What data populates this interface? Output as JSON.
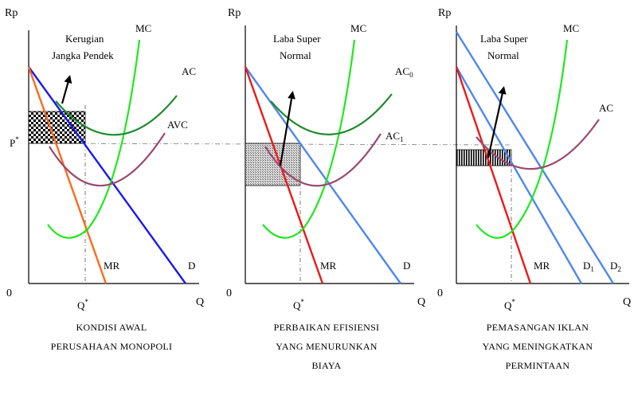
{
  "colors": {
    "mc": "#1ee81e",
    "ac": "#1f8a2e",
    "avc": "#9b4a6e",
    "mr_orange": "#ff6a1a",
    "d_blue": "#1a1aee",
    "mr_red": "#ee1818",
    "d_light": "#4f86f0"
  },
  "panels": [
    {
      "axis_y": "Rp",
      "axis_x": "Q",
      "origin": "0",
      "price_label": "P",
      "price_sup": "*",
      "qty_label": "Q",
      "qty_sup": "*",
      "annotation": [
        "Kerugian",
        "Jangka Pendek"
      ],
      "curves": {
        "mc": "MC",
        "ac": "AC",
        "avc": "AVC",
        "mr": "MR",
        "d": "D"
      },
      "caption": [
        "KONDISI AWAL",
        "PERUSAHAAN MONOPOLI"
      ]
    },
    {
      "axis_y": "Rp",
      "axis_x": "Q",
      "origin": "0",
      "qty_label": "Q",
      "qty_sup": "*",
      "annotation": [
        "Laba Super",
        "Normal"
      ],
      "curves": {
        "mc": "MC",
        "ac0": "AC",
        "ac0_sub": "0",
        "ac1": "AC",
        "ac1_sub": "1",
        "mr": "MR",
        "d": "D"
      },
      "caption": [
        "PERBAIKAN EFISIENSI",
        "YANG MENURUNKAN",
        "BIAYA"
      ]
    },
    {
      "axis_y": "Rp",
      "axis_x": "Q",
      "origin": "0",
      "qty_label": "Q",
      "qty_sup": "*",
      "annotation": [
        "Laba Super",
        "Normal"
      ],
      "curves": {
        "mc": "MC",
        "ac": "AC",
        "mr": "MR",
        "d1": "D",
        "d1_sub": "1",
        "d2": "D",
        "d2_sub": "2"
      },
      "caption": [
        "PEMASANGAN IKLAN",
        "YANG MENINGKATKAN",
        "PERMINTAAN"
      ]
    }
  ]
}
